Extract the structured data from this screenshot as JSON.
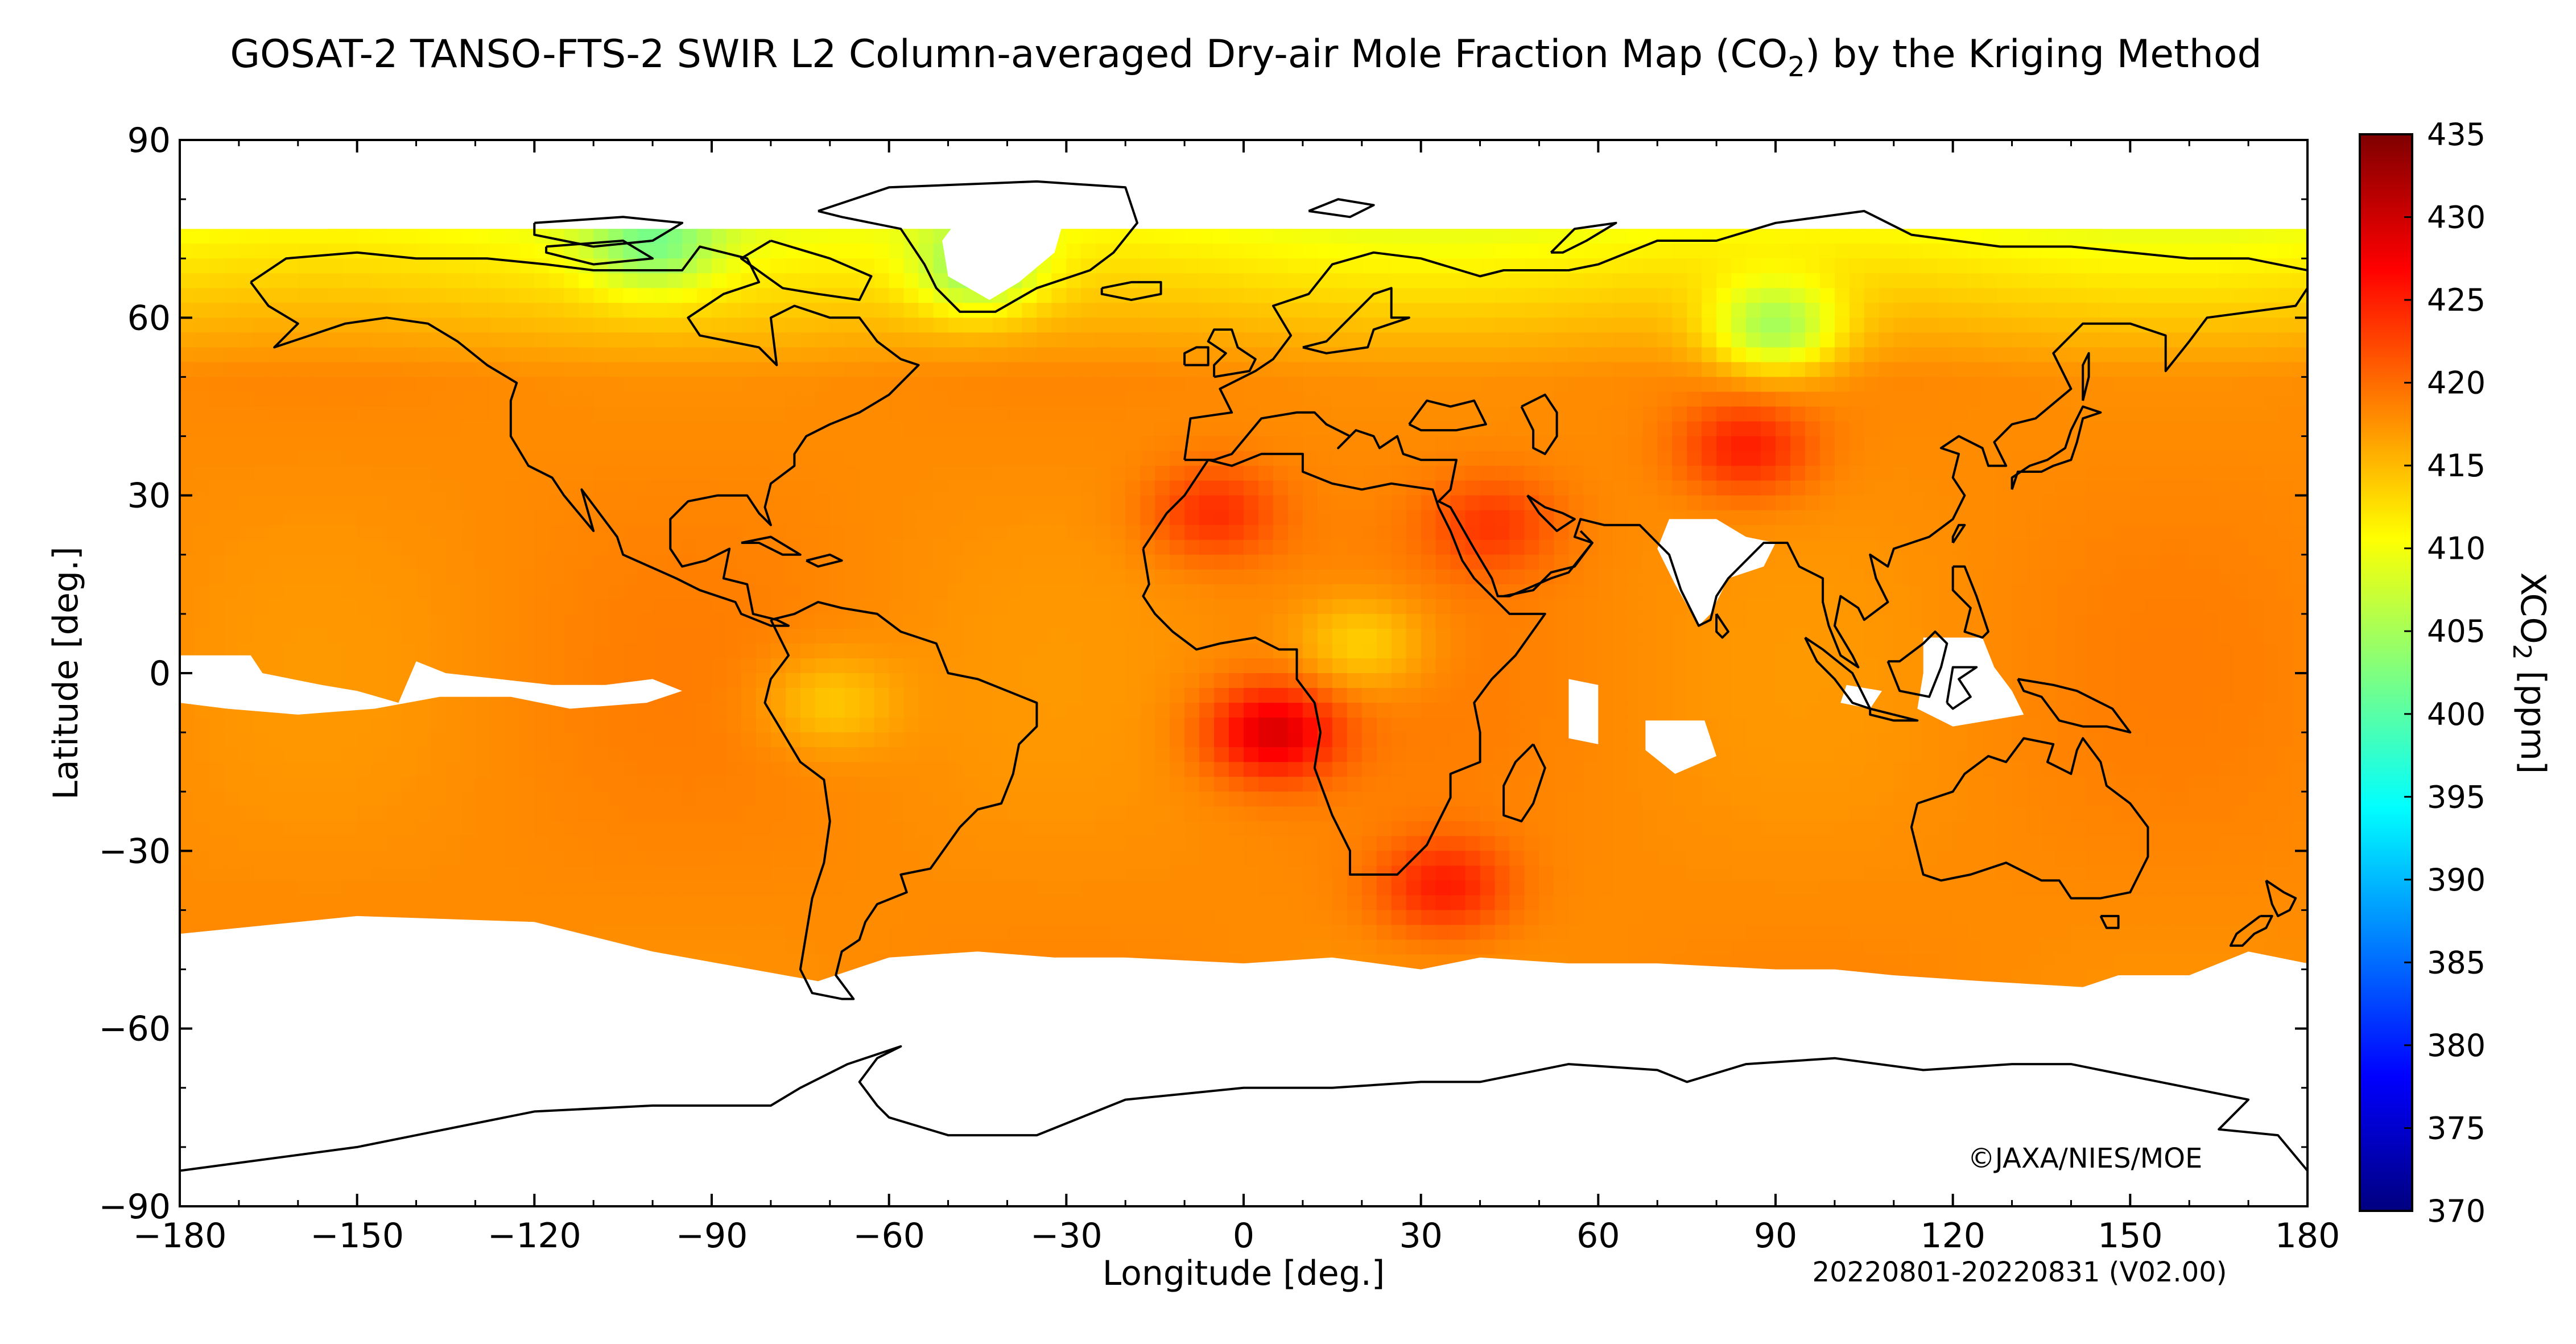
{
  "title": {
    "prefix": "GOSAT-2 TANSO-FTS-2 SWIR L2 Column-averaged Dry-air Mole Fraction Map (CO",
    "subscript": "2",
    "suffix": ") by the Kriging Method"
  },
  "map": {
    "type": "heatmap",
    "projection": "equirectangular",
    "xlabel": "Longitude [deg.]",
    "ylabel": "Latitude [deg.]",
    "xlim": [
      -180,
      180
    ],
    "ylim": [
      -90,
      90
    ],
    "xticks": [
      -180,
      -150,
      -120,
      -90,
      -60,
      -30,
      0,
      30,
      60,
      90,
      120,
      150,
      180
    ],
    "yticks": [
      -90,
      -60,
      -30,
      0,
      30,
      60,
      90
    ],
    "xtick_labels": [
      "−180",
      "−150",
      "−120",
      "−90",
      "−60",
      "−30",
      "0",
      "30",
      "60",
      "90",
      "120",
      "150",
      "180"
    ],
    "ytick_labels": [
      "−90",
      "−60",
      "−30",
      "0",
      "30",
      "60",
      "90"
    ],
    "grid": false,
    "coastlines": true,
    "missing_data_color": "#ffffff"
  },
  "colorbar": {
    "label_prefix": "XCO",
    "label_subscript": "2",
    "label_suffix": " [ppm]",
    "min": 370,
    "max": 435,
    "ticks": [
      370,
      375,
      380,
      385,
      390,
      395,
      400,
      405,
      410,
      415,
      420,
      425,
      430,
      435
    ],
    "colormap": [
      "#00007f",
      "#0000ff",
      "#007fff",
      "#00ffff",
      "#7fff7f",
      "#ffff00",
      "#ff7f00",
      "#ff0000",
      "#7f0000"
    ]
  },
  "credit": "©JAXA/NIES/MOE",
  "period": "20220801-20220831 (V02.00)",
  "chart_data": {
    "type": "heatmap",
    "title": "GOSAT-2 TANSO-FTS-2 SWIR L2 Column-averaged Dry-air Mole Fraction Map (CO2) by the Kriging Method",
    "xlabel": "Longitude [deg.]",
    "ylabel": "Latitude [deg.]",
    "zlabel": "XCO2 [ppm]",
    "xlim": [
      -180,
      180
    ],
    "ylim": [
      -90,
      90
    ],
    "zlim": [
      370,
      435
    ],
    "typical_value_ppm": 418,
    "features": [
      {
        "lon": 5,
        "lat": -10,
        "value": 429
      },
      {
        "lon": -5,
        "lat": 27,
        "value": 424
      },
      {
        "lon": 42,
        "lat": 25,
        "value": 423
      },
      {
        "lon": 85,
        "lat": 38,
        "value": 425
      },
      {
        "lon": 34,
        "lat": -36,
        "value": 425
      },
      {
        "lon": 20,
        "lat": 5,
        "value": 413
      },
      {
        "lon": -70,
        "lat": -5,
        "value": 414
      },
      {
        "lon": 90,
        "lat": 58,
        "value": 407
      },
      {
        "lon": -45,
        "lat": 68,
        "value": 409
      },
      {
        "lon": -100,
        "lat": 72,
        "value": 410
      },
      {
        "lon": 0,
        "lat": -50,
        "value": 418
      }
    ]
  }
}
